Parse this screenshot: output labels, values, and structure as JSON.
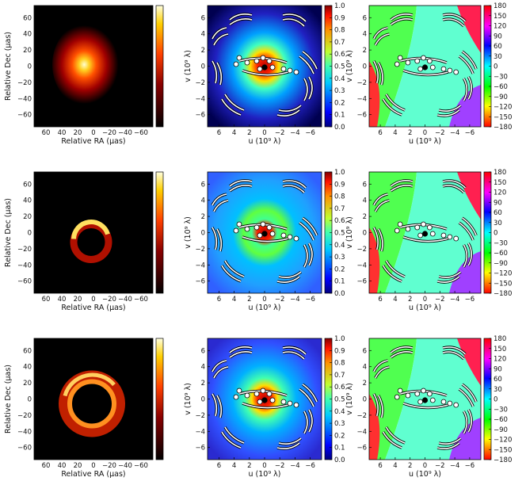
{
  "figure": {
    "rows": [
      {
        "image": {
          "xlabel": "Relative RA (μas)",
          "ylabel": "Relative Dec (μas)",
          "xticks": [
            "60",
            "40",
            "20",
            "0",
            "−20",
            "−40",
            "−60"
          ],
          "yticks": [
            "60",
            "40",
            "20",
            "0",
            "−20",
            "−40",
            "−60"
          ],
          "morphology": "compact-blob"
        },
        "amplitude": {
          "xlabel": "u (10⁹ λ)",
          "ylabel": "v (10⁹ λ)",
          "xticks": [
            "6",
            "4",
            "2",
            "0",
            "−2",
            "−4",
            "−6"
          ],
          "yticks": [
            "6",
            "4",
            "2",
            "0",
            "−2",
            "−4",
            "−6"
          ],
          "colorbar": [
            "1.0",
            "0.9",
            "0.8",
            "0.7",
            "0.6",
            "0.5",
            "0.4",
            "0.3",
            "0.2",
            "0.1",
            "0.0"
          ]
        },
        "phase": {
          "xlabel": "u (10⁹ λ)",
          "ylabel": "v (10⁹ λ)",
          "xticks": [
            "6",
            "4",
            "2",
            "0",
            "−2",
            "−4",
            "−6"
          ],
          "yticks": [
            "6",
            "4",
            "2",
            "0",
            "−2",
            "−4",
            "−6"
          ],
          "colorbar": [
            "180",
            "150",
            "120",
            "90",
            "60",
            "30",
            "0",
            "−30",
            "−60",
            "−90",
            "−120",
            "−150",
            "−180"
          ]
        }
      },
      {
        "image": {
          "xlabel": "Relative RA (μas)",
          "ylabel": "Relative Dec (μas)",
          "xticks": [
            "60",
            "40",
            "20",
            "0",
            "−20",
            "−40",
            "−60"
          ],
          "yticks": [
            "60",
            "40",
            "20",
            "0",
            "−20",
            "−40",
            "−60"
          ],
          "morphology": "crescent"
        },
        "amplitude": {
          "xlabel": "u (10⁹ λ)",
          "ylabel": "v (10⁹ λ)",
          "xticks": [
            "6",
            "4",
            "2",
            "0",
            "−2",
            "−4",
            "−6"
          ],
          "yticks": [
            "6",
            "4",
            "2",
            "0",
            "−2",
            "−4",
            "−6"
          ],
          "colorbar": [
            "1.0",
            "0.9",
            "0.8",
            "0.7",
            "0.6",
            "0.5",
            "0.4",
            "0.3",
            "0.2",
            "0.1",
            "0.0"
          ]
        },
        "phase": {
          "xlabel": "u (10⁹ λ)",
          "ylabel": "v (10⁹ λ)",
          "xticks": [
            "6",
            "4",
            "2",
            "0",
            "−2",
            "−4",
            "−6"
          ],
          "yticks": [
            "6",
            "4",
            "2",
            "0",
            "−2",
            "−4",
            "−6"
          ],
          "colorbar": [
            "180",
            "150",
            "120",
            "90",
            "60",
            "30",
            "0",
            "−30",
            "−60",
            "−90",
            "−120",
            "−150",
            "−180"
          ]
        }
      },
      {
        "image": {
          "xlabel": "Relative RA (μas)",
          "ylabel": "Relative Dec (μas)",
          "xticks": [
            "60",
            "40",
            "20",
            "0",
            "−20",
            "−40",
            "−60"
          ],
          "yticks": [
            "60",
            "40",
            "20",
            "0",
            "−20",
            "−40",
            "−60"
          ],
          "morphology": "spiral-ring"
        },
        "amplitude": {
          "xlabel": "u (10⁹ λ)",
          "ylabel": "v (10⁹ λ)",
          "xticks": [
            "6",
            "4",
            "2",
            "0",
            "−2",
            "−4",
            "−6"
          ],
          "yticks": [
            "6",
            "4",
            "2",
            "0",
            "−2",
            "−4",
            "−6"
          ],
          "colorbar": [
            "1.0",
            "0.9",
            "0.8",
            "0.7",
            "0.6",
            "0.5",
            "0.4",
            "0.3",
            "0.2",
            "0.1",
            "0.0"
          ]
        },
        "phase": {
          "xlabel": "u (10⁹ λ)",
          "ylabel": "v (10⁹ λ)",
          "xticks": [
            "6",
            "4",
            "2",
            "0",
            "−2",
            "−4",
            "−6"
          ],
          "yticks": [
            "6",
            "4",
            "2",
            "0",
            "−2",
            "−4",
            "−6"
          ],
          "colorbar": [
            "180",
            "150",
            "120",
            "90",
            "60",
            "30",
            "0",
            "−30",
            "−60",
            "−90",
            "−120",
            "−150",
            "−180"
          ]
        }
      }
    ]
  },
  "colors": {
    "image_background": "#000000",
    "uv_track_outline": "#000000",
    "uv_track_fill": "#ffffff"
  }
}
